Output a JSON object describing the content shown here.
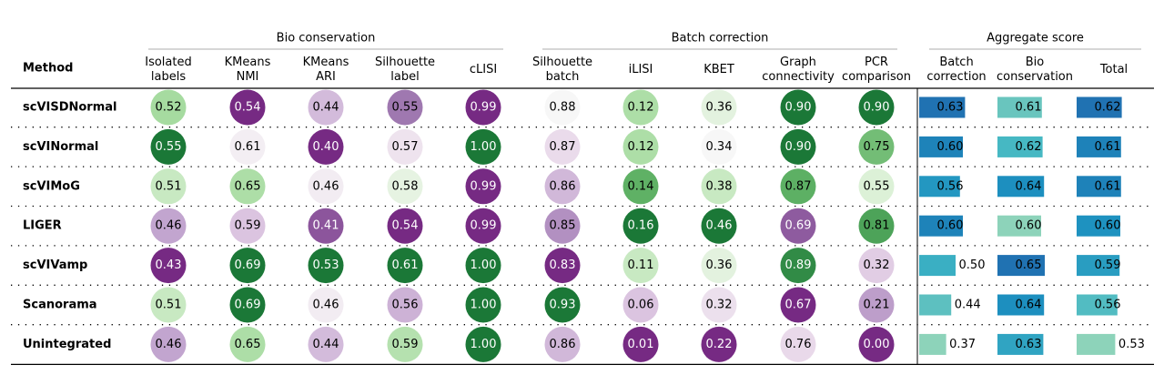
{
  "chart_data": {
    "type": "table",
    "method_header": "Method",
    "groups": [
      {
        "name": "Bio conservation",
        "kind": "circle"
      },
      {
        "name": "Batch correction",
        "kind": "circle"
      },
      {
        "name": "Aggregate score",
        "kind": "bar"
      }
    ],
    "columns": [
      {
        "label": [
          "Isolated",
          "labels"
        ],
        "group": 0,
        "cmap": "PRGn"
      },
      {
        "label": [
          "KMeans",
          "NMI"
        ],
        "group": 0,
        "cmap": "PRGn"
      },
      {
        "label": [
          "KMeans",
          "ARI"
        ],
        "group": 0,
        "cmap": "PRGn"
      },
      {
        "label": [
          "Silhouette",
          "label"
        ],
        "group": 0,
        "cmap": "PRGn"
      },
      {
        "label": [
          "cLISI"
        ],
        "group": 0,
        "cmap": "PRGn"
      },
      {
        "label": [
          "Silhouette",
          "batch"
        ],
        "group": 1,
        "cmap": "PRGn"
      },
      {
        "label": [
          "iLISI"
        ],
        "group": 1,
        "cmap": "PRGn"
      },
      {
        "label": [
          "KBET"
        ],
        "group": 1,
        "cmap": "PRGn"
      },
      {
        "label": [
          "Graph",
          "connectivity"
        ],
        "group": 1,
        "cmap": "PRGn"
      },
      {
        "label": [
          "PCR",
          "comparison"
        ],
        "group": 1,
        "cmap": "PRGn"
      },
      {
        "label": [
          "Batch",
          "correction"
        ],
        "group": 2,
        "cmap": "YlGnBu"
      },
      {
        "label": [
          "Bio",
          "conservation"
        ],
        "group": 2,
        "cmap": "YlGnBu"
      },
      {
        "label": [
          "Total"
        ],
        "group": 2,
        "cmap": "YlGnBu"
      }
    ],
    "rows": [
      {
        "method": "scVISDNormal",
        "values": [
          0.52,
          0.54,
          0.44,
          0.55,
          0.99,
          0.88,
          0.12,
          0.36,
          0.9,
          0.9,
          0.63,
          0.61,
          0.62
        ]
      },
      {
        "method": "scVINormal",
        "values": [
          0.55,
          0.61,
          0.4,
          0.57,
          1.0,
          0.87,
          0.12,
          0.34,
          0.9,
          0.75,
          0.6,
          0.62,
          0.61
        ]
      },
      {
        "method": "scVIMoG",
        "values": [
          0.51,
          0.65,
          0.46,
          0.58,
          0.99,
          0.86,
          0.14,
          0.38,
          0.87,
          0.55,
          0.56,
          0.64,
          0.61
        ]
      },
      {
        "method": "LIGER",
        "values": [
          0.46,
          0.59,
          0.41,
          0.54,
          0.99,
          0.85,
          0.16,
          0.46,
          0.69,
          0.81,
          0.6,
          0.6,
          0.6
        ]
      },
      {
        "method": "scVIVamp",
        "values": [
          0.43,
          0.69,
          0.53,
          0.61,
          1.0,
          0.83,
          0.11,
          0.36,
          0.89,
          0.32,
          0.5,
          0.65,
          0.59
        ]
      },
      {
        "method": "Scanorama",
        "values": [
          0.51,
          0.69,
          0.46,
          0.56,
          1.0,
          0.93,
          0.06,
          0.32,
          0.67,
          0.21,
          0.44,
          0.64,
          0.56
        ]
      },
      {
        "method": "Unintegrated",
        "values": [
          0.46,
          0.65,
          0.44,
          0.59,
          1.0,
          0.86,
          0.01,
          0.22,
          0.76,
          0.0,
          0.37,
          0.63,
          0.53
        ]
      }
    ],
    "palettes": {
      "PRGn": [
        "#40004b",
        "#762a83",
        "#9970ab",
        "#c2a5cf",
        "#e7d4e8",
        "#f7f7f7",
        "#d9f0d3",
        "#a6dba0",
        "#5aae61",
        "#1b7837",
        "#00441b"
      ],
      "YlGnBu": [
        "#ffffd9",
        "#edf8b1",
        "#c7e9b4",
        "#7fcdbb",
        "#41b6c4",
        "#1d91c0",
        "#225ea8",
        "#253494",
        "#081d58"
      ]
    }
  }
}
